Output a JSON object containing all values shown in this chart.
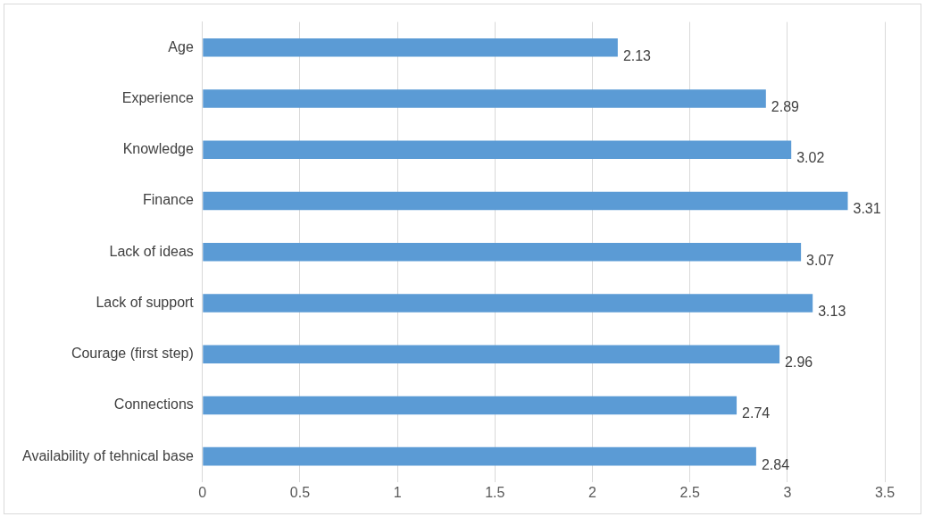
{
  "chart_data": {
    "type": "bar",
    "orientation": "horizontal",
    "categories": [
      "Age",
      "Experience",
      "Knowledge",
      "Finance",
      "Lack of ideas",
      "Lack of support",
      "Courage (first step)",
      "Connections",
      "Availability of tehnical base"
    ],
    "values": [
      2.13,
      2.89,
      3.02,
      3.31,
      3.07,
      3.13,
      2.96,
      2.74,
      2.84
    ],
    "color": "#5b9bd5",
    "xlim": [
      0,
      3.5
    ],
    "xticks": [
      0,
      0.5,
      1,
      1.5,
      2,
      2.5,
      3,
      3.5
    ],
    "grid": "x",
    "legend": false,
    "data_labels": true
  }
}
